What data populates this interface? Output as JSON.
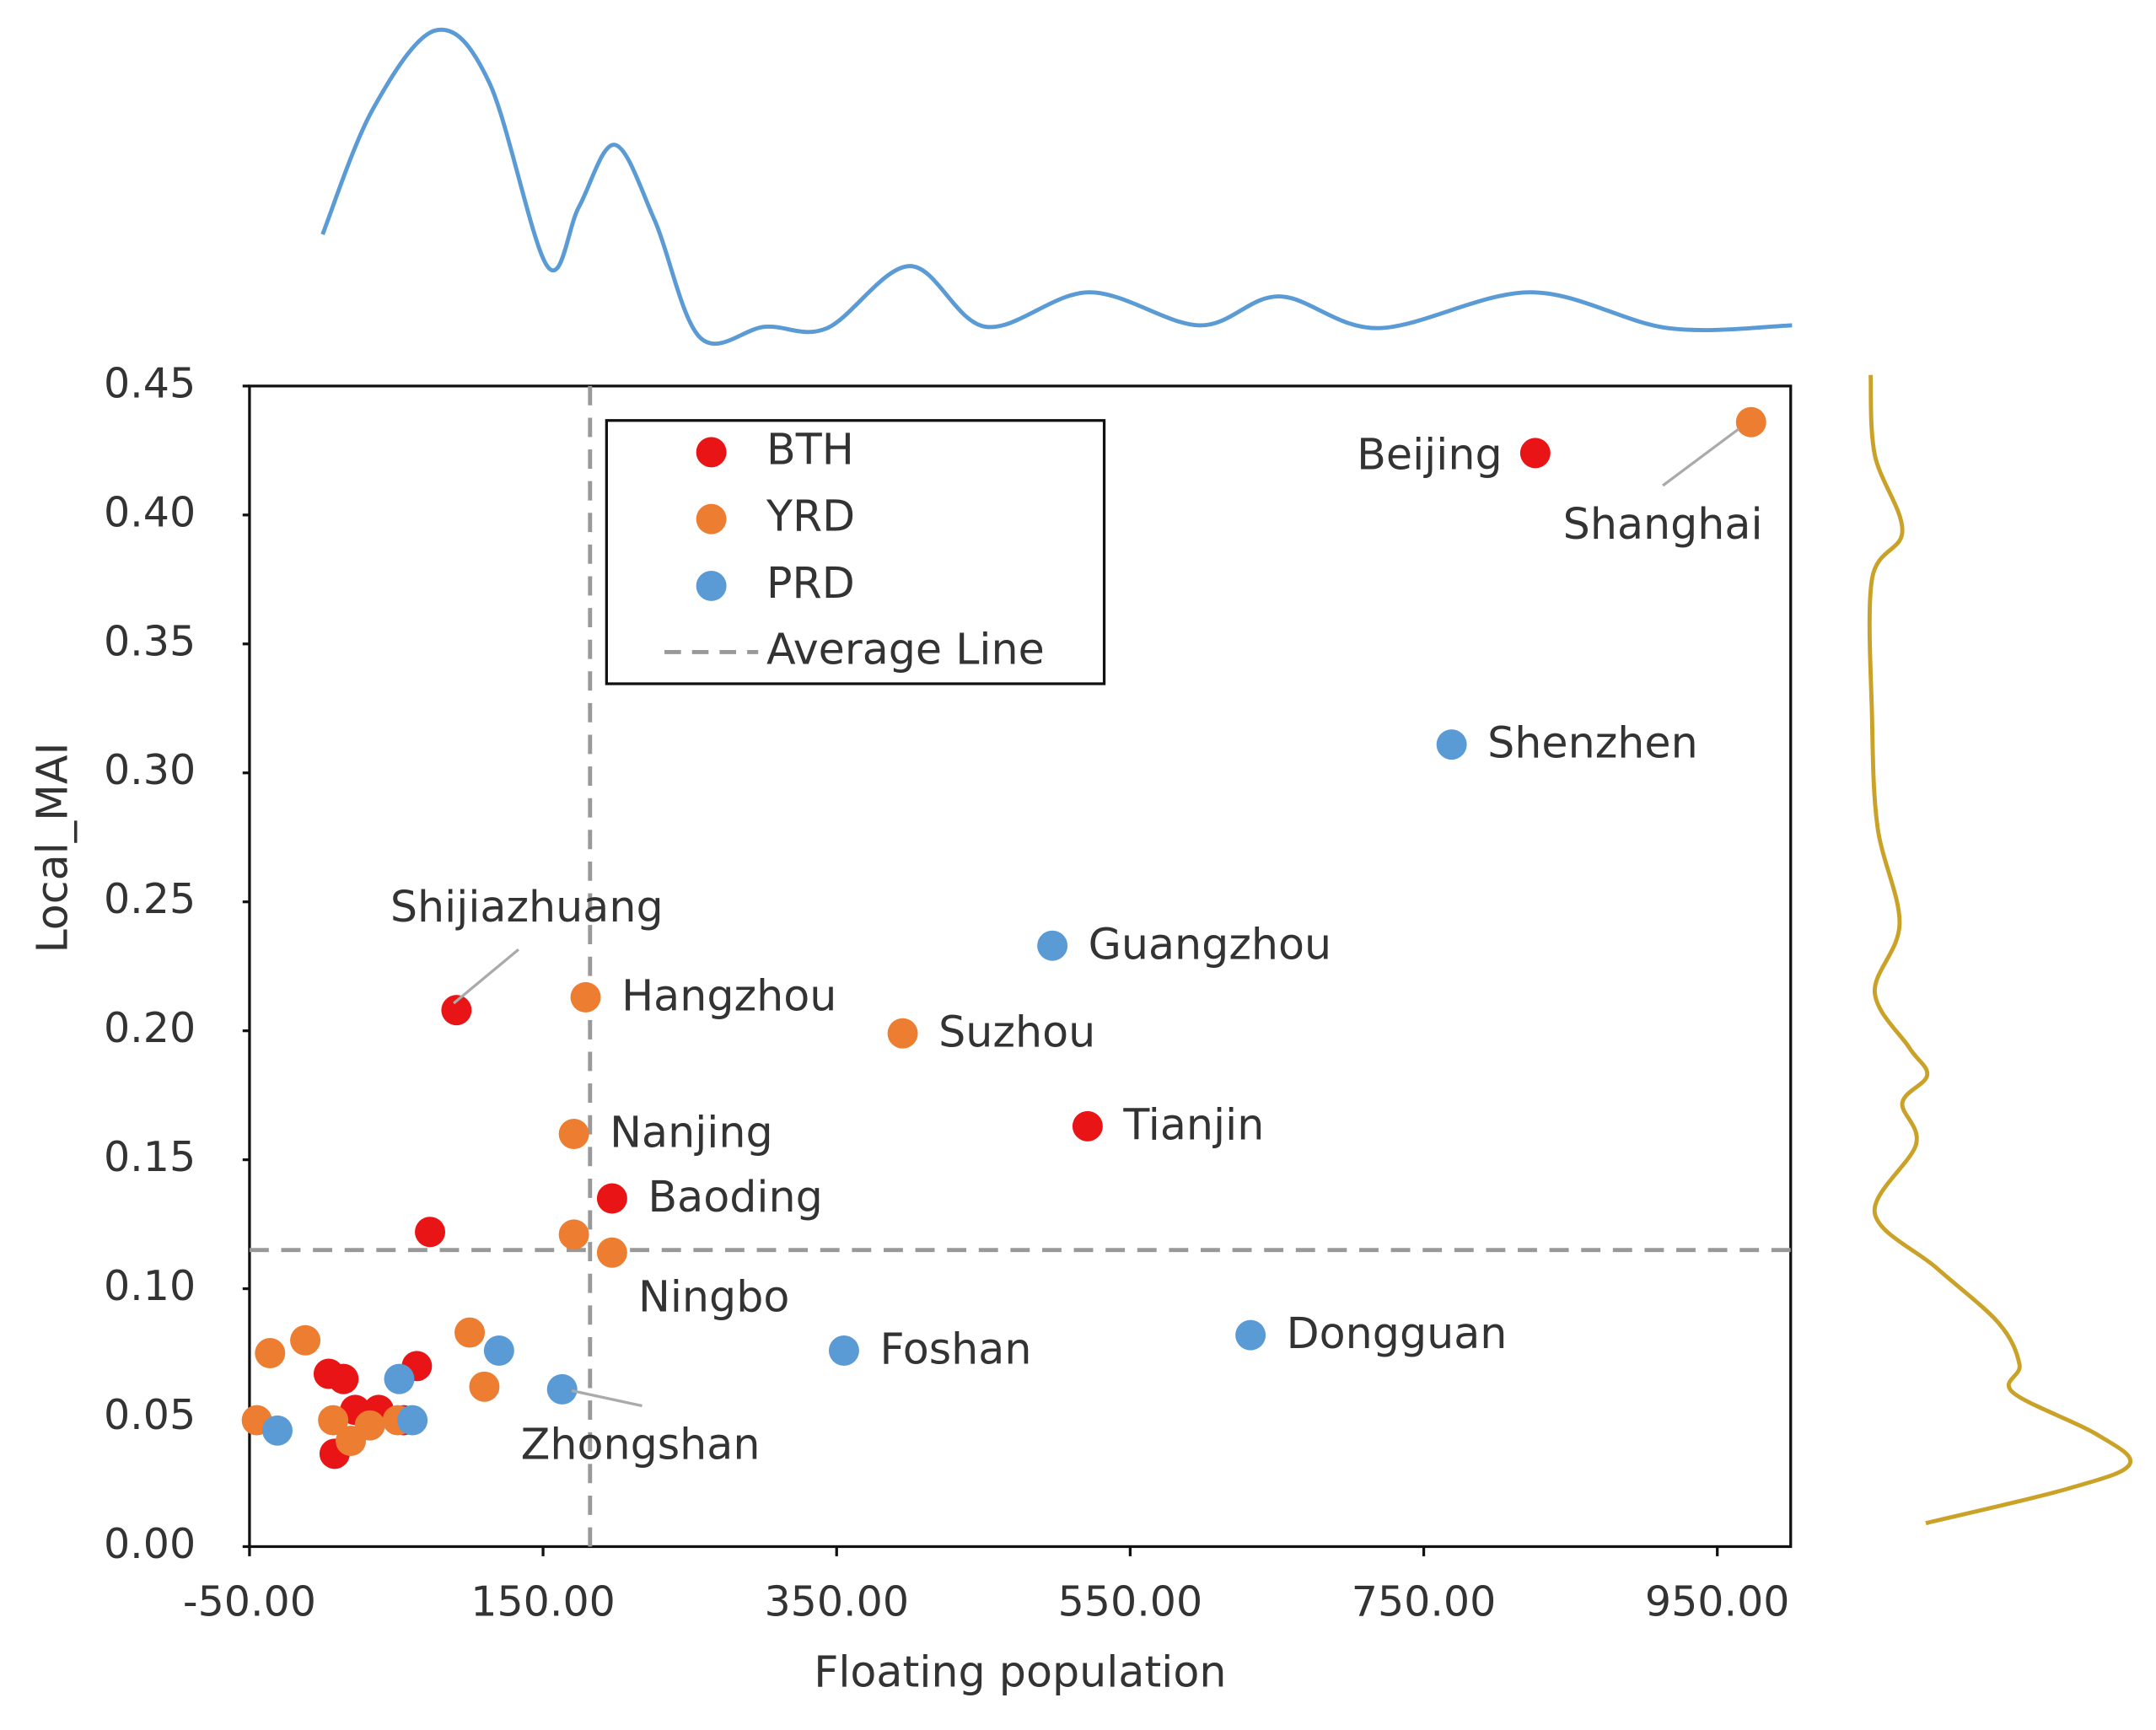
{
  "chart_data": {
    "type": "scatter",
    "x_label": "Floating population",
    "y_label": "Local_MAI",
    "xlim": [
      -50,
      1000
    ],
    "ylim": [
      0,
      0.45
    ],
    "xticks": [
      {
        "value": -50,
        "label": "-50.00"
      },
      {
        "value": 150,
        "label": "150.00"
      },
      {
        "value": 350,
        "label": "350.00"
      },
      {
        "value": 550,
        "label": "550.00"
      },
      {
        "value": 750,
        "label": "750.00"
      },
      {
        "value": 950,
        "label": "950.00"
      }
    ],
    "yticks": [
      {
        "value": 0,
        "label": "0.00"
      },
      {
        "value": 0.05,
        "label": "0.05"
      },
      {
        "value": 0.1,
        "label": "0.10"
      },
      {
        "value": 0.15,
        "label": "0.15"
      },
      {
        "value": 0.2,
        "label": "0.20"
      },
      {
        "value": 0.25,
        "label": "0.25"
      },
      {
        "value": 0.3,
        "label": "0.30"
      },
      {
        "value": 0.35,
        "label": "0.35"
      },
      {
        "value": 0.4,
        "label": "0.40"
      },
      {
        "value": 0.45,
        "label": "0.45"
      }
    ],
    "series": [
      {
        "name": "BTH",
        "color": "#e81416",
        "x": [
          826,
          521,
          91,
          197,
          73,
          4,
          14,
          8,
          22,
          38,
          55,
          64
        ],
        "y": [
          0.424,
          0.163,
          0.208,
          0.135,
          0.122,
          0.067,
          0.065,
          0.036,
          0.053,
          0.053,
          0.049,
          0.07
        ],
        "labels": [
          "Beijing",
          "Tianjin",
          "Shijiazhuang",
          "Baoding",
          null,
          null,
          null,
          null,
          null,
          null,
          null,
          null
        ]
      },
      {
        "name": "YRD",
        "color": "#ed7d31",
        "x": [
          973,
          179,
          395,
          171,
          197,
          171,
          100,
          110,
          -36,
          -12,
          -45,
          7,
          19,
          32,
          51
        ],
        "y": [
          0.436,
          0.213,
          0.199,
          0.16,
          0.114,
          0.121,
          0.083,
          0.062,
          0.075,
          0.08,
          0.049,
          0.049,
          0.041,
          0.047,
          0.049
        ],
        "labels": [
          "Shanghai",
          "Hangzhou",
          "Suzhou",
          "Nanjing",
          "Ningbo",
          null,
          null,
          null,
          null,
          null,
          null,
          null,
          null,
          null,
          null
        ]
      },
      {
        "name": "PRD",
        "color": "#5b9bd5",
        "x": [
          769,
          497,
          632,
          355,
          163,
          120,
          -31,
          52,
          61
        ],
        "y": [
          0.311,
          0.233,
          0.082,
          0.076,
          0.061,
          0.076,
          0.045,
          0.065,
          0.049
        ],
        "labels": [
          "Shenzhen",
          "Guangzhou",
          "Dongguan",
          "Foshan",
          "Zhongshan",
          null,
          null,
          null,
          null
        ]
      }
    ],
    "average_line": {
      "name": "Average Line",
      "x": 182,
      "y": 0.115
    }
  }
}
